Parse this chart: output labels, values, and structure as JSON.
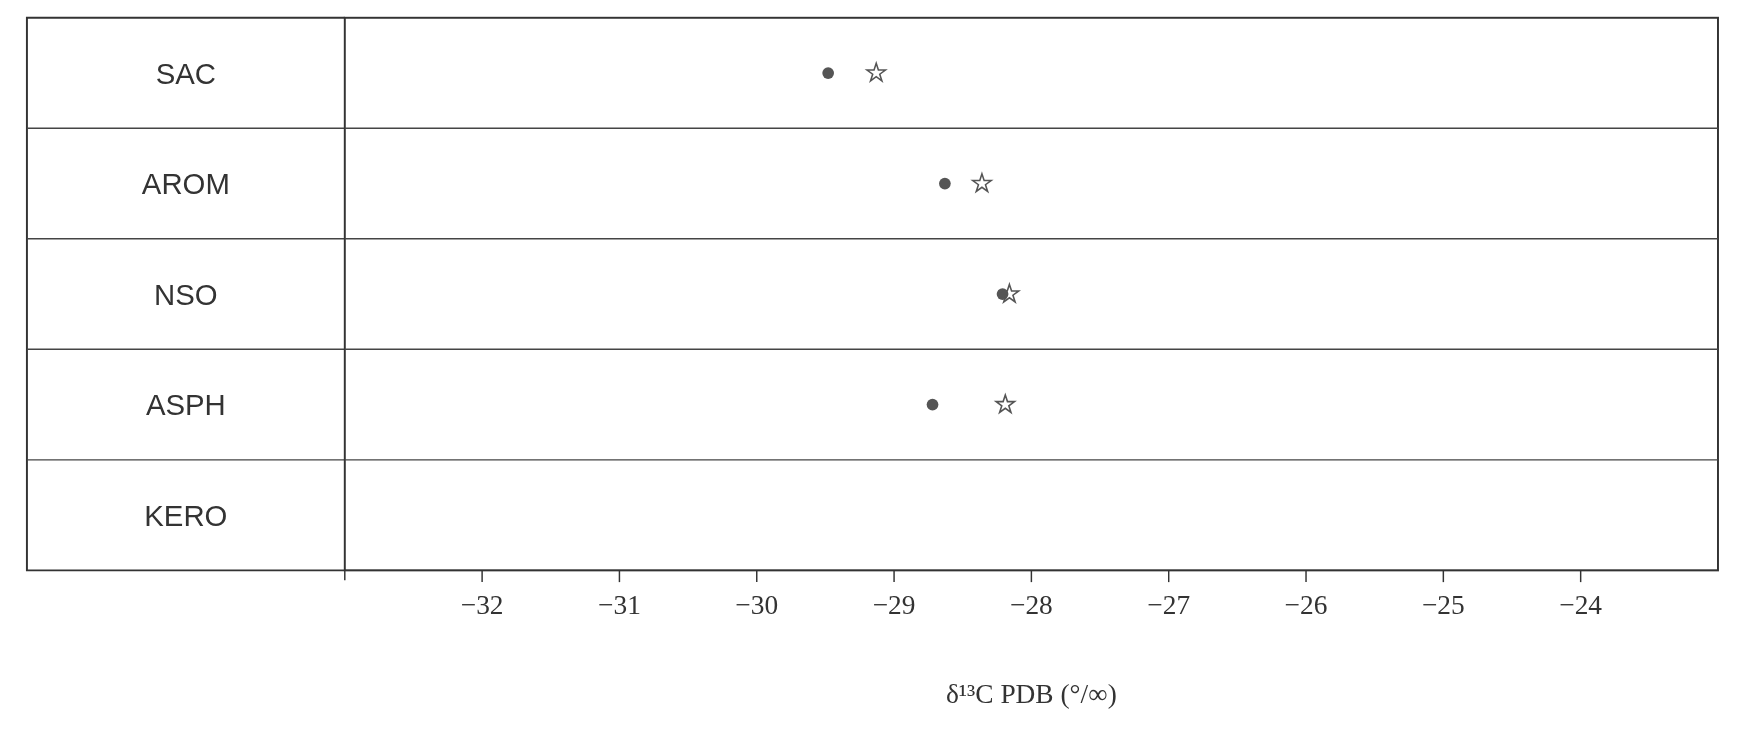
{
  "chart_data": {
    "type": "scatter",
    "orientation": "horizontal",
    "xlabel": "δ¹³C  PDB  (°/∞)",
    "categories": [
      "SAC",
      "AROM",
      "NSO",
      "ASPH",
      "KERO"
    ],
    "xlim": [
      -33,
      -23
    ],
    "xticks": [
      {
        "value": -32,
        "label": "−32"
      },
      {
        "value": -31,
        "label": "−31"
      },
      {
        "value": -30,
        "label": "−30"
      },
      {
        "value": -29,
        "label": "−29"
      },
      {
        "value": -28,
        "label": "−28"
      },
      {
        "value": -27,
        "label": "−27"
      },
      {
        "value": -26,
        "label": "−26"
      },
      {
        "value": -25,
        "label": "−25"
      },
      {
        "value": -24,
        "label": "−24"
      }
    ],
    "series": [
      {
        "color": "#555555",
        "marker": "circle",
        "values": [
          -29.48,
          -28.63,
          -28.21,
          -28.72,
          null
        ]
      },
      {
        "color": "#555555",
        "marker": "star",
        "values": [
          -29.13,
          -28.36,
          -28.16,
          -28.19,
          null
        ]
      }
    ]
  }
}
